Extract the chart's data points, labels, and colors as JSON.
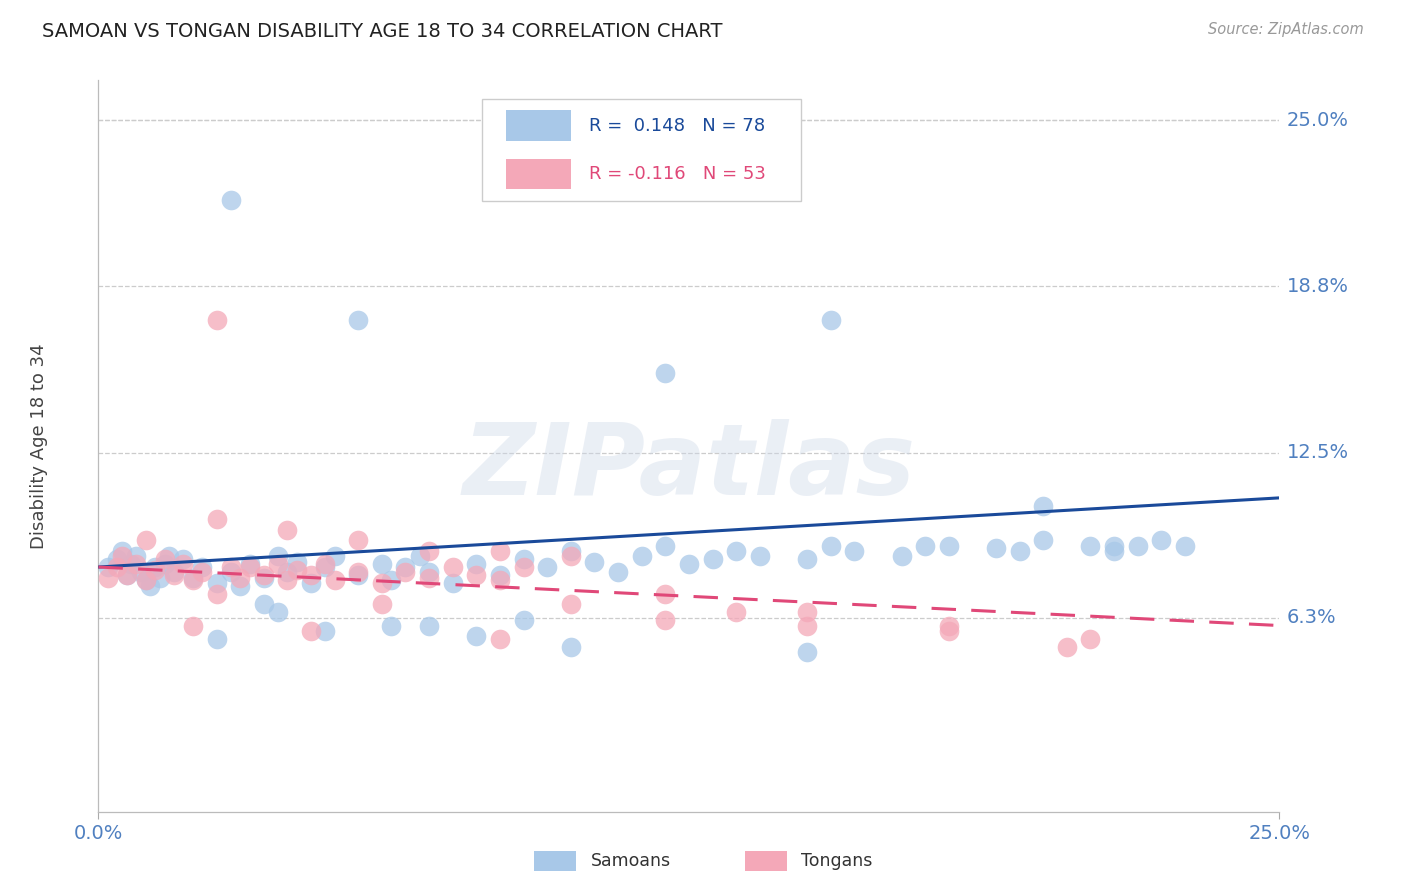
{
  "title": "SAMOAN VS TONGAN DISABILITY AGE 18 TO 34 CORRELATION CHART",
  "source": "Source: ZipAtlas.com",
  "ylabel": "Disability Age 18 to 34",
  "x_min": 0.0,
  "x_max": 0.25,
  "y_min": -0.01,
  "y_max": 0.265,
  "x_tick_labels": [
    "0.0%",
    "25.0%"
  ],
  "y_tick_labels": [
    "25.0%",
    "18.8%",
    "12.5%",
    "6.3%"
  ],
  "y_tick_values": [
    0.25,
    0.1875,
    0.125,
    0.063
  ],
  "samoan_color": "#a8c8e8",
  "tongan_color": "#f4a8b8",
  "samoan_line_color": "#1a4a9a",
  "tongan_line_color": "#e04878",
  "samoan_R": 0.148,
  "samoan_N": 78,
  "tongan_R": -0.116,
  "tongan_N": 53,
  "watermark": "ZIPatlas",
  "background_color": "#ffffff",
  "grid_color": "#cccccc",
  "axis_label_color": "#5080c0",
  "samoan_line_y0": 0.082,
  "samoan_line_y1": 0.108,
  "tongan_line_y0": 0.082,
  "tongan_line_y1": 0.06,
  "samoan_pts_x": [
    0.002,
    0.004,
    0.005,
    0.006,
    0.007,
    0.008,
    0.009,
    0.01,
    0.011,
    0.012,
    0.013,
    0.014,
    0.015,
    0.016,
    0.018,
    0.02,
    0.022,
    0.025,
    0.028,
    0.03,
    0.032,
    0.035,
    0.038,
    0.04,
    0.042,
    0.045,
    0.048,
    0.05,
    0.055,
    0.06,
    0.062,
    0.065,
    0.068,
    0.07,
    0.075,
    0.08,
    0.085,
    0.09,
    0.095,
    0.1,
    0.105,
    0.11,
    0.115,
    0.12,
    0.125,
    0.13,
    0.135,
    0.14,
    0.15,
    0.155,
    0.16,
    0.17,
    0.18,
    0.19,
    0.195,
    0.2,
    0.21,
    0.215,
    0.22,
    0.225,
    0.028,
    0.055,
    0.12,
    0.155,
    0.2,
    0.215,
    0.038,
    0.062,
    0.09,
    0.035,
    0.07,
    0.048,
    0.08,
    0.025,
    0.1,
    0.15,
    0.175,
    0.23
  ],
  "samoan_pts_y": [
    0.082,
    0.085,
    0.088,
    0.079,
    0.083,
    0.086,
    0.08,
    0.077,
    0.075,
    0.082,
    0.078,
    0.083,
    0.086,
    0.08,
    0.085,
    0.078,
    0.082,
    0.076,
    0.08,
    0.075,
    0.083,
    0.078,
    0.086,
    0.08,
    0.084,
    0.076,
    0.082,
    0.086,
    0.079,
    0.083,
    0.077,
    0.082,
    0.086,
    0.08,
    0.076,
    0.083,
    0.079,
    0.085,
    0.082,
    0.088,
    0.084,
    0.08,
    0.086,
    0.09,
    0.083,
    0.085,
    0.088,
    0.086,
    0.085,
    0.09,
    0.088,
    0.086,
    0.09,
    0.089,
    0.088,
    0.092,
    0.09,
    0.088,
    0.09,
    0.092,
    0.22,
    0.175,
    0.155,
    0.175,
    0.105,
    0.09,
    0.065,
    0.06,
    0.062,
    0.068,
    0.06,
    0.058,
    0.056,
    0.055,
    0.052,
    0.05,
    0.09,
    0.09
  ],
  "tongan_pts_x": [
    0.002,
    0.004,
    0.005,
    0.006,
    0.008,
    0.01,
    0.012,
    0.014,
    0.016,
    0.018,
    0.02,
    0.022,
    0.025,
    0.028,
    0.03,
    0.032,
    0.035,
    0.038,
    0.04,
    0.042,
    0.045,
    0.048,
    0.05,
    0.055,
    0.06,
    0.065,
    0.07,
    0.075,
    0.08,
    0.085,
    0.09,
    0.01,
    0.025,
    0.04,
    0.055,
    0.07,
    0.085,
    0.1,
    0.12,
    0.135,
    0.15,
    0.18,
    0.21,
    0.025,
    0.06,
    0.1,
    0.12,
    0.15,
    0.18,
    0.205,
    0.02,
    0.045,
    0.085
  ],
  "tongan_pts_y": [
    0.078,
    0.082,
    0.086,
    0.079,
    0.083,
    0.077,
    0.081,
    0.085,
    0.079,
    0.083,
    0.077,
    0.08,
    0.175,
    0.082,
    0.078,
    0.082,
    0.079,
    0.083,
    0.077,
    0.081,
    0.079,
    0.083,
    0.077,
    0.08,
    0.076,
    0.08,
    0.078,
    0.082,
    0.079,
    0.077,
    0.082,
    0.092,
    0.1,
    0.096,
    0.092,
    0.088,
    0.088,
    0.086,
    0.072,
    0.065,
    0.065,
    0.06,
    0.055,
    0.072,
    0.068,
    0.068,
    0.062,
    0.06,
    0.058,
    0.052,
    0.06,
    0.058,
    0.055
  ]
}
